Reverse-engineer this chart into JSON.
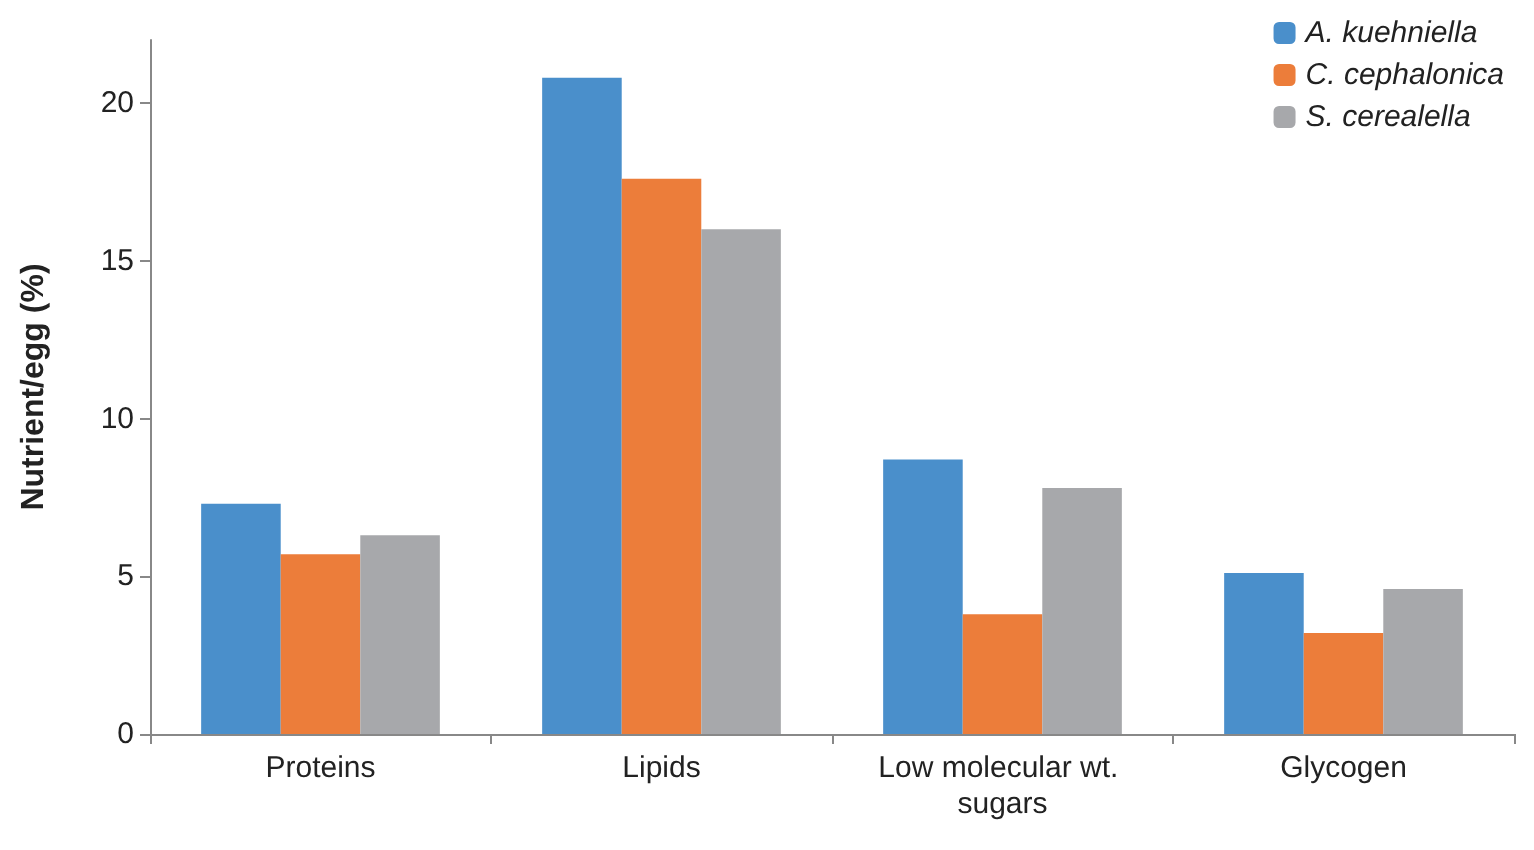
{
  "chart_data": {
    "type": "bar",
    "ylabel": "Nutrient/egg (%)",
    "categories": [
      "Proteins",
      "Lipids",
      "Low molecular wt. sugars",
      "Glycogen"
    ],
    "series": [
      {
        "name": "A. kuehniella",
        "color": "#4a8fcb",
        "values": [
          7.3,
          20.8,
          8.7,
          5.1
        ]
      },
      {
        "name": "C. cephalonica",
        "color": "#ec7d3a",
        "values": [
          5.7,
          17.6,
          3.8,
          3.2
        ]
      },
      {
        "name": "S. cerealella",
        "color": "#a7a8ab",
        "values": [
          6.3,
          16.0,
          7.8,
          4.6
        ]
      }
    ],
    "ylim": [
      0,
      22
    ],
    "yticks": [
      0,
      5,
      10,
      15,
      20
    ],
    "grid": false,
    "legend": "top right"
  }
}
